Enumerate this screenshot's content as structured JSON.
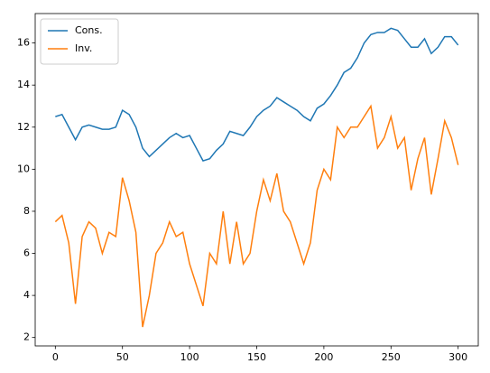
{
  "chart_data": {
    "type": "line",
    "x": [
      0,
      5,
      10,
      15,
      20,
      25,
      30,
      35,
      40,
      45,
      50,
      55,
      60,
      65,
      70,
      75,
      80,
      85,
      90,
      95,
      100,
      105,
      110,
      115,
      120,
      125,
      130,
      135,
      140,
      145,
      150,
      155,
      160,
      165,
      170,
      175,
      180,
      185,
      190,
      195,
      200,
      205,
      210,
      215,
      220,
      225,
      230,
      235,
      240,
      245,
      250,
      255,
      260,
      265,
      270,
      275,
      280,
      285,
      290,
      295,
      300
    ],
    "series": [
      {
        "name": "Cons.",
        "color": "#1f77b4",
        "values": [
          12.5,
          12.6,
          12.0,
          11.4,
          12.0,
          12.1,
          12.0,
          11.9,
          11.9,
          12.0,
          12.8,
          12.6,
          12.0,
          11.0,
          10.6,
          10.9,
          11.2,
          11.5,
          11.7,
          11.5,
          11.6,
          11.0,
          10.4,
          10.5,
          10.9,
          11.2,
          11.8,
          11.7,
          11.6,
          12.0,
          12.5,
          12.8,
          13.0,
          13.4,
          13.2,
          13.0,
          12.8,
          12.5,
          12.3,
          12.9,
          13.1,
          13.5,
          14.0,
          14.6,
          14.8,
          15.3,
          16.0,
          16.4,
          16.5,
          16.5,
          16.7,
          16.6,
          16.2,
          15.8,
          15.8,
          16.2,
          15.5,
          15.8,
          16.3,
          16.3,
          15.9
        ]
      },
      {
        "name": "Inv.",
        "color": "#ff7f0e",
        "values": [
          7.5,
          7.8,
          6.5,
          3.6,
          6.8,
          7.5,
          7.2,
          6.0,
          7.0,
          6.8,
          9.6,
          8.5,
          7.0,
          2.5,
          4.0,
          6.0,
          6.5,
          7.5,
          6.8,
          7.0,
          5.5,
          4.5,
          3.5,
          6.0,
          5.5,
          8.0,
          5.5,
          7.5,
          5.5,
          6.0,
          8.0,
          9.5,
          8.5,
          9.8,
          8.0,
          7.5,
          6.5,
          5.5,
          6.5,
          9.0,
          10.0,
          9.5,
          12.0,
          11.5,
          12.0,
          12.0,
          12.5,
          13.0,
          11.0,
          11.5,
          12.5,
          11.0,
          11.5,
          9.0,
          10.5,
          11.5,
          8.8,
          10.5,
          12.3,
          11.5,
          10.2
        ]
      }
    ],
    "xlim": [
      -15,
      315
    ],
    "ylim": [
      1.6,
      17.4
    ],
    "xticks": [
      0,
      50,
      100,
      150,
      200,
      250,
      300
    ],
    "yticks": [
      2,
      4,
      6,
      8,
      10,
      12,
      14,
      16
    ],
    "grid": false,
    "legend": "upper-left"
  }
}
